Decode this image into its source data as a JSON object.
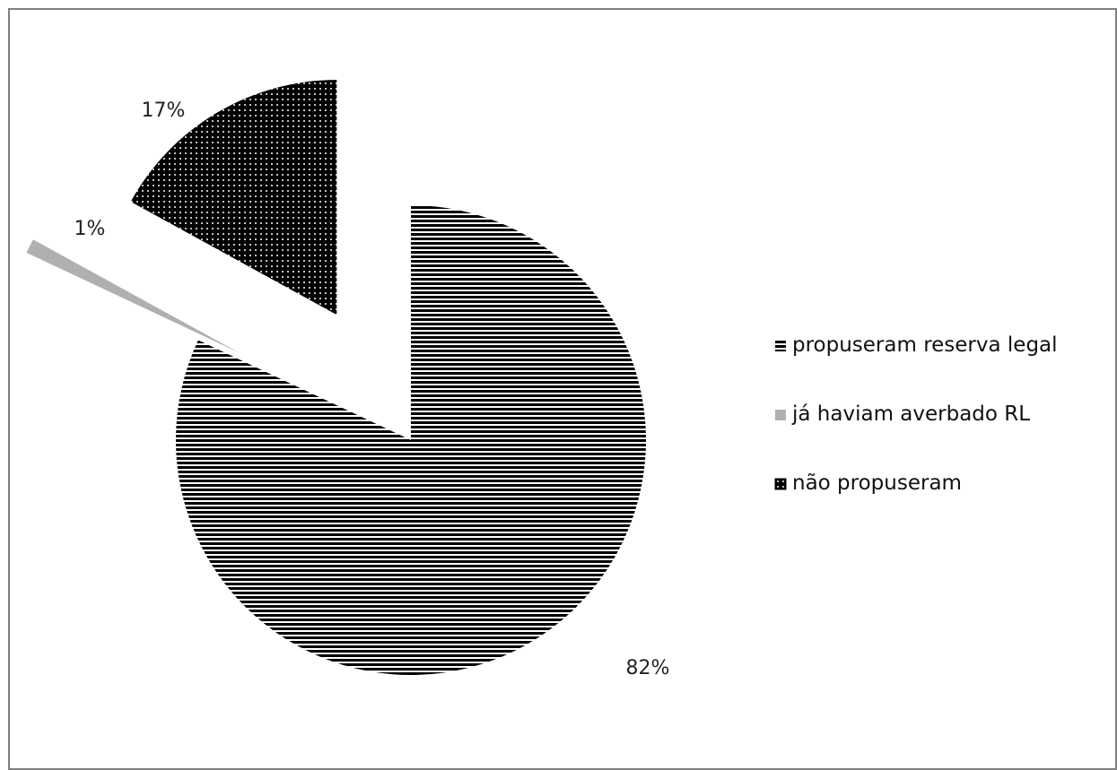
{
  "chart_data": {
    "type": "pie",
    "title": "",
    "slices": [
      {
        "label": "propuseram reserva legal",
        "value": 82,
        "display": "82%",
        "pattern": "horizontal-lines",
        "color": "#000000",
        "exploded": false
      },
      {
        "label": "já haviam averbado RL",
        "value": 1,
        "display": "1%",
        "pattern": "solid",
        "color": "#b0b0b0",
        "exploded": true
      },
      {
        "label": "não propuseram",
        "value": 17,
        "display": "17%",
        "pattern": "dots",
        "color": "#000000",
        "exploded": true
      }
    ],
    "legend": {
      "placement": "right",
      "entries": [
        "propuseram reserva legal",
        "já haviam averbado RL",
        "não propuseram"
      ]
    }
  }
}
